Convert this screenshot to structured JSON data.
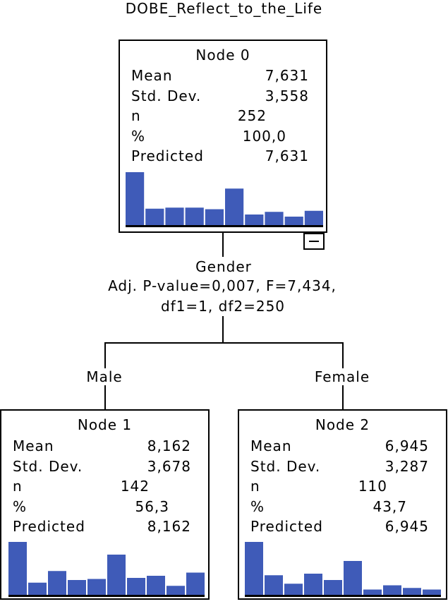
{
  "title": "DOBE_Reflect_to_the_Life",
  "colors": {
    "bar": "#3F5BB8",
    "line": "#000000",
    "background": "#ffffff"
  },
  "root": {
    "node_label": "Node 0",
    "stats": [
      {
        "label": "Mean",
        "value": "7,631"
      },
      {
        "label": "Std. Dev.",
        "value": "3,558"
      },
      {
        "label": "n",
        "value": "252"
      },
      {
        "label": "%",
        "value": "100,0"
      },
      {
        "label": "Predicted",
        "value": "7,631"
      }
    ],
    "histogram": [
      1.0,
      0.31,
      0.33,
      0.33,
      0.3,
      0.69,
      0.2,
      0.25,
      0.16,
      0.27
    ],
    "collapse_icon": "minus-icon"
  },
  "split": {
    "variable": "Gender",
    "stats_line1": "Adj. P-value=0,007, F=7,434,",
    "stats_line2": "df1=1, df2=250"
  },
  "children": [
    {
      "branch_label": "Male",
      "node_label": "Node 1",
      "stats": [
        {
          "label": "Mean",
          "value": "8,162"
        },
        {
          "label": "Std. Dev.",
          "value": "3,678"
        },
        {
          "label": "n",
          "value": "142"
        },
        {
          "label": "%",
          "value": "56,3"
        },
        {
          "label": "Predicted",
          "value": "8,162"
        }
      ],
      "histogram": [
        1.0,
        0.23,
        0.45,
        0.28,
        0.3,
        0.76,
        0.32,
        0.36,
        0.17,
        0.42
      ]
    },
    {
      "branch_label": "Female",
      "node_label": "Node 2",
      "stats": [
        {
          "label": "Mean",
          "value": "6,945"
        },
        {
          "label": "Std. Dev.",
          "value": "3,287"
        },
        {
          "label": "n",
          "value": "110"
        },
        {
          "label": "%",
          "value": "43,7"
        },
        {
          "label": "Predicted",
          "value": "6,945"
        }
      ],
      "histogram": [
        1.0,
        0.37,
        0.21,
        0.4,
        0.28,
        0.64,
        0.1,
        0.18,
        0.13,
        0.1
      ]
    }
  ]
}
